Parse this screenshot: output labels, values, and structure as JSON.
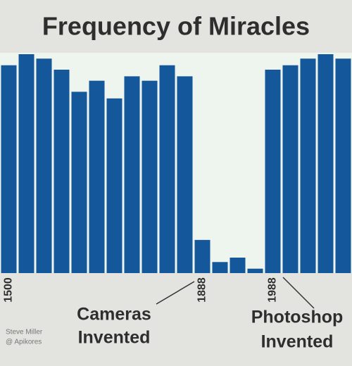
{
  "chart_data": {
    "type": "bar",
    "title": "Frequency of Miracles",
    "categories": [
      "1500",
      null,
      null,
      null,
      null,
      null,
      null,
      null,
      null,
      null,
      null,
      "1888",
      null,
      null,
      null,
      "1988",
      null,
      null,
      null,
      null
    ],
    "values": [
      94,
      99,
      97,
      92,
      82,
      87,
      79,
      89,
      87,
      94,
      89,
      15,
      5,
      7,
      2,
      92,
      94,
      97,
      99,
      97
    ],
    "color": "#14579a",
    "annotations": [
      [
        "Cameras",
        "Invented"
      ],
      [
        "Photoshop",
        "Invented"
      ]
    ],
    "credit": [
      "Steve Miller",
      "@ Apikores"
    ]
  }
}
